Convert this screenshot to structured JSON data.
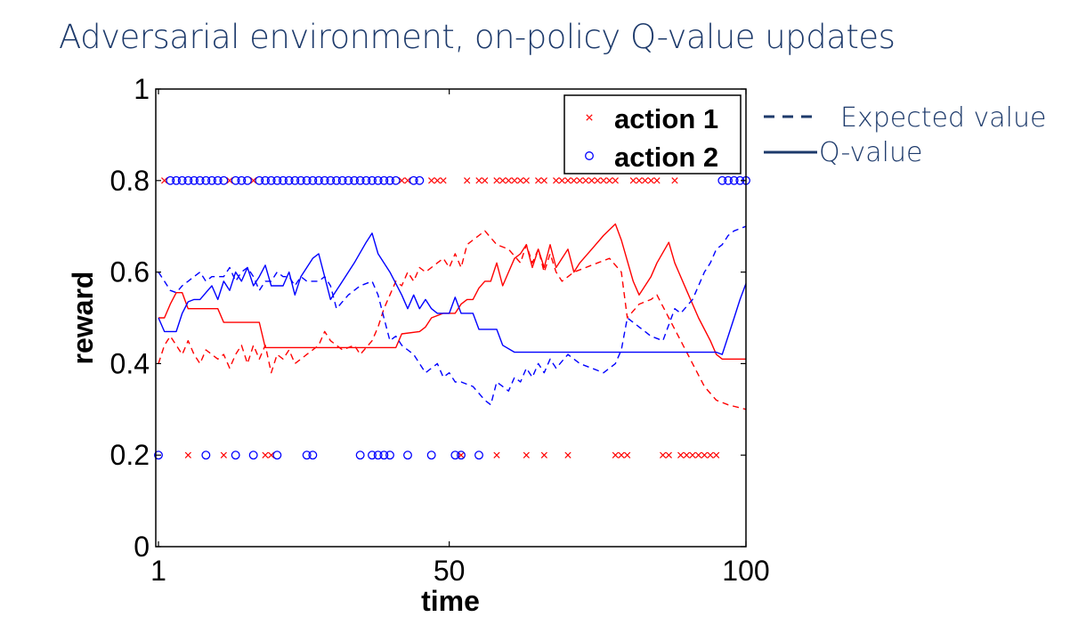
{
  "page": {
    "title": "Adversarial environment, on-policy Q-value updates"
  },
  "line_key": {
    "expected_label": "Expected value",
    "q_label": "Q-value",
    "color": "#1d3a6b"
  },
  "chart_data": {
    "type": "line",
    "title": "",
    "xlabel": "time",
    "ylabel": "reward",
    "xlim": [
      1,
      100
    ],
    "ylim": [
      0,
      1
    ],
    "xticks": [
      1,
      50,
      100
    ],
    "yticks": [
      0,
      0.2,
      0.4,
      0.6,
      0.8,
      1
    ],
    "grid": false,
    "legend": {
      "position": "top-right",
      "entries": [
        {
          "label": "action 1",
          "marker": "x",
          "color": "#ff0000"
        },
        {
          "label": "action 2",
          "marker": "o",
          "color": "#0000ff"
        }
      ]
    },
    "colors": {
      "action_1": "#ff0000",
      "action_2": "#0000ff"
    },
    "series": [
      {
        "action": "action 1",
        "kind": "Q-value",
        "style": "solid",
        "color": "#ff0000",
        "points": [
          [
            1,
            0.5
          ],
          [
            2,
            0.5
          ],
          [
            3,
            0.53
          ],
          [
            4,
            0.555
          ],
          [
            5,
            0.555
          ],
          [
            6,
            0.52
          ],
          [
            11,
            0.52
          ],
          [
            12,
            0.49
          ],
          [
            18,
            0.49
          ],
          [
            19,
            0.435
          ],
          [
            41,
            0.435
          ],
          [
            42,
            0.465
          ],
          [
            45,
            0.47
          ],
          [
            46,
            0.48
          ],
          [
            47,
            0.5
          ],
          [
            49,
            0.51
          ],
          [
            51,
            0.51
          ],
          [
            52,
            0.53
          ],
          [
            53,
            0.54
          ],
          [
            54,
            0.54
          ],
          [
            55,
            0.565
          ],
          [
            56,
            0.58
          ],
          [
            57,
            0.58
          ],
          [
            58,
            0.62
          ],
          [
            59,
            0.57
          ],
          [
            60,
            0.6
          ],
          [
            61,
            0.63
          ],
          [
            62,
            0.64
          ],
          [
            63,
            0.66
          ],
          [
            64,
            0.61
          ],
          [
            65,
            0.65
          ],
          [
            66,
            0.61
          ],
          [
            67,
            0.66
          ],
          [
            68,
            0.61
          ],
          [
            69,
            0.63
          ],
          [
            70,
            0.65
          ],
          [
            71,
            0.6
          ],
          [
            72,
            0.62
          ],
          [
            74,
            0.65
          ],
          [
            76,
            0.68
          ],
          [
            78,
            0.705
          ],
          [
            79,
            0.67
          ],
          [
            81,
            0.58
          ],
          [
            82,
            0.55
          ],
          [
            84,
            0.59
          ],
          [
            85,
            0.62
          ],
          [
            87,
            0.665
          ],
          [
            88,
            0.62
          ],
          [
            90,
            0.56
          ],
          [
            92,
            0.5
          ],
          [
            94,
            0.45
          ],
          [
            95,
            0.42
          ],
          [
            96,
            0.41
          ],
          [
            100,
            0.41
          ]
        ]
      },
      {
        "action": "action 1",
        "kind": "Expected value",
        "style": "dashed",
        "color": "#ff0000",
        "points": [
          [
            1,
            0.4
          ],
          [
            2,
            0.44
          ],
          [
            3,
            0.46
          ],
          [
            4,
            0.44
          ],
          [
            5,
            0.42
          ],
          [
            6,
            0.45
          ],
          [
            7,
            0.42
          ],
          [
            8,
            0.4
          ],
          [
            9,
            0.43
          ],
          [
            11,
            0.41
          ],
          [
            12,
            0.42
          ],
          [
            13,
            0.39
          ],
          [
            14,
            0.42
          ],
          [
            15,
            0.44
          ],
          [
            16,
            0.4
          ],
          [
            17,
            0.44
          ],
          [
            18,
            0.41
          ],
          [
            19,
            0.44
          ],
          [
            20,
            0.38
          ],
          [
            21,
            0.42
          ],
          [
            22,
            0.41
          ],
          [
            23,
            0.43
          ],
          [
            24,
            0.4
          ],
          [
            26,
            0.42
          ],
          [
            28,
            0.44
          ],
          [
            29,
            0.47
          ],
          [
            30,
            0.45
          ],
          [
            32,
            0.43
          ],
          [
            34,
            0.44
          ],
          [
            35,
            0.42
          ],
          [
            37,
            0.45
          ],
          [
            38,
            0.48
          ],
          [
            39,
            0.52
          ],
          [
            40,
            0.55
          ],
          [
            41,
            0.58
          ],
          [
            42,
            0.57
          ],
          [
            43,
            0.6
          ],
          [
            44,
            0.58
          ],
          [
            45,
            0.61
          ],
          [
            46,
            0.6
          ],
          [
            48,
            0.62
          ],
          [
            49,
            0.63
          ],
          [
            50,
            0.61
          ],
          [
            51,
            0.64
          ],
          [
            52,
            0.61
          ],
          [
            53,
            0.66
          ],
          [
            54,
            0.67
          ],
          [
            55,
            0.68
          ],
          [
            56,
            0.69
          ],
          [
            58,
            0.66
          ],
          [
            60,
            0.65
          ],
          [
            62,
            0.62
          ],
          [
            63,
            0.66
          ],
          [
            64,
            0.62
          ],
          [
            65,
            0.65
          ],
          [
            66,
            0.6
          ],
          [
            67,
            0.64
          ],
          [
            68,
            0.6
          ],
          [
            69,
            0.58
          ],
          [
            71,
            0.6
          ],
          [
            73,
            0.61
          ],
          [
            75,
            0.62
          ],
          [
            77,
            0.63
          ],
          [
            79,
            0.6
          ],
          [
            80,
            0.5
          ],
          [
            82,
            0.53
          ],
          [
            84,
            0.54
          ],
          [
            85,
            0.55
          ],
          [
            87,
            0.5
          ],
          [
            89,
            0.45
          ],
          [
            91,
            0.4
          ],
          [
            93,
            0.35
          ],
          [
            95,
            0.32
          ],
          [
            97,
            0.31
          ],
          [
            100,
            0.3
          ]
        ]
      },
      {
        "action": "action 2",
        "kind": "Q-value",
        "style": "solid",
        "color": "#0000ff",
        "points": [
          [
            1,
            0.5
          ],
          [
            2,
            0.47
          ],
          [
            4,
            0.47
          ],
          [
            5,
            0.51
          ],
          [
            6,
            0.535
          ],
          [
            7,
            0.54
          ],
          [
            8,
            0.54
          ],
          [
            9,
            0.555
          ],
          [
            10,
            0.57
          ],
          [
            11,
            0.54
          ],
          [
            12,
            0.58
          ],
          [
            13,
            0.56
          ],
          [
            14,
            0.6
          ],
          [
            15,
            0.58
          ],
          [
            16,
            0.61
          ],
          [
            17,
            0.57
          ],
          [
            18,
            0.59
          ],
          [
            19,
            0.615
          ],
          [
            20,
            0.57
          ],
          [
            22,
            0.57
          ],
          [
            23,
            0.6
          ],
          [
            24,
            0.55
          ],
          [
            25,
            0.59
          ],
          [
            27,
            0.63
          ],
          [
            28,
            0.64
          ],
          [
            29,
            0.59
          ],
          [
            30,
            0.54
          ],
          [
            32,
            0.58
          ],
          [
            34,
            0.62
          ],
          [
            36,
            0.665
          ],
          [
            37,
            0.685
          ],
          [
            38,
            0.64
          ],
          [
            40,
            0.6
          ],
          [
            42,
            0.55
          ],
          [
            43,
            0.52
          ],
          [
            44,
            0.55
          ],
          [
            45,
            0.52
          ],
          [
            46,
            0.54
          ],
          [
            47,
            0.52
          ],
          [
            48,
            0.51
          ],
          [
            50,
            0.51
          ],
          [
            51,
            0.545
          ],
          [
            52,
            0.51
          ],
          [
            54,
            0.51
          ],
          [
            55,
            0.475
          ],
          [
            58,
            0.475
          ],
          [
            59,
            0.44
          ],
          [
            61,
            0.425
          ],
          [
            95,
            0.425
          ],
          [
            96,
            0.42
          ],
          [
            97,
            0.46
          ],
          [
            98,
            0.5
          ],
          [
            99,
            0.54
          ],
          [
            100,
            0.575
          ]
        ]
      },
      {
        "action": "action 2",
        "kind": "Expected value",
        "style": "dashed",
        "color": "#0000ff",
        "points": [
          [
            1,
            0.6
          ],
          [
            2,
            0.58
          ],
          [
            3,
            0.56
          ],
          [
            4,
            0.555
          ],
          [
            5,
            0.57
          ],
          [
            6,
            0.58
          ],
          [
            7,
            0.59
          ],
          [
            8,
            0.6
          ],
          [
            9,
            0.58
          ],
          [
            10,
            0.59
          ],
          [
            11,
            0.59
          ],
          [
            12,
            0.59
          ],
          [
            13,
            0.61
          ],
          [
            14,
            0.58
          ],
          [
            15,
            0.6
          ],
          [
            16,
            0.61
          ],
          [
            17,
            0.59
          ],
          [
            18,
            0.56
          ],
          [
            19,
            0.58
          ],
          [
            20,
            0.58
          ],
          [
            21,
            0.6
          ],
          [
            22,
            0.59
          ],
          [
            23,
            0.59
          ],
          [
            24,
            0.57
          ],
          [
            25,
            0.59
          ],
          [
            26,
            0.58
          ],
          [
            27,
            0.58
          ],
          [
            28,
            0.58
          ],
          [
            29,
            0.59
          ],
          [
            30,
            0.57
          ],
          [
            31,
            0.52
          ],
          [
            33,
            0.55
          ],
          [
            35,
            0.57
          ],
          [
            37,
            0.58
          ],
          [
            38,
            0.55
          ],
          [
            39,
            0.5
          ],
          [
            40,
            0.45
          ],
          [
            41,
            0.46
          ],
          [
            42,
            0.44
          ],
          [
            43,
            0.43
          ],
          [
            44,
            0.42
          ],
          [
            45,
            0.4
          ],
          [
            46,
            0.38
          ],
          [
            48,
            0.4
          ],
          [
            49,
            0.37
          ],
          [
            50,
            0.38
          ],
          [
            51,
            0.36
          ],
          [
            52,
            0.36
          ],
          [
            54,
            0.35
          ],
          [
            56,
            0.32
          ],
          [
            57,
            0.31
          ],
          [
            58,
            0.36
          ],
          [
            59,
            0.35
          ],
          [
            60,
            0.34
          ],
          [
            61,
            0.37
          ],
          [
            62,
            0.36
          ],
          [
            63,
            0.39
          ],
          [
            64,
            0.37
          ],
          [
            65,
            0.4
          ],
          [
            66,
            0.38
          ],
          [
            67,
            0.41
          ],
          [
            68,
            0.39
          ],
          [
            70,
            0.42
          ],
          [
            72,
            0.4
          ],
          [
            74,
            0.39
          ],
          [
            76,
            0.38
          ],
          [
            78,
            0.4
          ],
          [
            79,
            0.43
          ],
          [
            80,
            0.5
          ],
          [
            82,
            0.48
          ],
          [
            84,
            0.46
          ],
          [
            86,
            0.45
          ],
          [
            88,
            0.52
          ],
          [
            89,
            0.51
          ],
          [
            91,
            0.54
          ],
          [
            92,
            0.57
          ],
          [
            93,
            0.6
          ],
          [
            94,
            0.62
          ],
          [
            95,
            0.65
          ],
          [
            96,
            0.66
          ],
          [
            97,
            0.68
          ],
          [
            98,
            0.69
          ],
          [
            100,
            0.7
          ]
        ]
      }
    ],
    "observed_rewards": {
      "action_1": {
        "marker": "x",
        "color": "#ff0000",
        "high_0.8": [
          2,
          13,
          17,
          42,
          43,
          47,
          48,
          49,
          53,
          55,
          56,
          58,
          59,
          60,
          61,
          62,
          63,
          65,
          66,
          68,
          69,
          70,
          71,
          72,
          73,
          74,
          75,
          76,
          77,
          78,
          81,
          82,
          83,
          84,
          85,
          88
        ],
        "low_0.2": [
          6,
          12,
          19,
          20,
          52,
          58,
          63,
          66,
          70,
          78,
          79,
          80,
          86,
          87,
          89,
          90,
          91,
          92,
          93,
          94,
          95
        ]
      },
      "action_2": {
        "marker": "o",
        "color": "#0000ff",
        "high_0.8": [
          3,
          4,
          5,
          6,
          7,
          8,
          9,
          10,
          11,
          12,
          14,
          15,
          16,
          18,
          19,
          20,
          21,
          22,
          23,
          24,
          25,
          26,
          27,
          28,
          29,
          30,
          31,
          32,
          33,
          34,
          35,
          36,
          37,
          38,
          39,
          40,
          41,
          44,
          45,
          96,
          97,
          98,
          99,
          100
        ],
        "low_0.2": [
          1,
          9,
          14,
          17,
          21,
          26,
          27,
          35,
          37,
          38,
          39,
          40,
          43,
          47,
          51,
          52,
          55
        ]
      }
    }
  }
}
